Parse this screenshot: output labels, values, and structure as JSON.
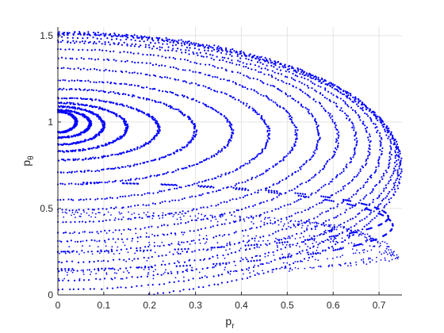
{
  "chart_data": {
    "type": "scatter",
    "title": "",
    "xlabel": "p",
    "xlabel_sub": "r",
    "ylabel": "p",
    "ylabel_sub": "θ",
    "xlim": [
      0,
      0.75
    ],
    "ylim": [
      0,
      1.55
    ],
    "x_ticks": [
      0,
      0.1,
      0.2,
      0.3,
      0.4,
      0.5,
      0.6,
      0.7
    ],
    "x_tick_labels": [
      "0",
      "0.1",
      "0.2",
      "0.3",
      "0.4",
      "0.5",
      "0.6",
      "0.7"
    ],
    "y_ticks": [
      0,
      0.5,
      1,
      1.5
    ],
    "y_tick_labels": [
      "0",
      "0.5",
      "1",
      "1.5"
    ],
    "grid": true,
    "legend": "none",
    "marker_color": "#0000ff",
    "series": [
      {
        "orbits": [
          {
            "cx": 0,
            "cy": 1.0,
            "a": 0.04,
            "b": 0.06
          },
          {
            "cx": 0,
            "cy": 0.99,
            "a": 0.07,
            "b": 0.08
          },
          {
            "cx": 0,
            "cy": 0.98,
            "a": 0.1,
            "b": 0.11
          },
          {
            "cx": 0,
            "cy": 0.97,
            "a": 0.15,
            "b": 0.14
          },
          {
            "cx": 0,
            "cy": 0.96,
            "a": 0.22,
            "b": 0.18
          },
          {
            "cx": 0,
            "cy": 0.95,
            "a": 0.3,
            "b": 0.24
          },
          {
            "cx": 0,
            "cy": 0.94,
            "a": 0.38,
            "b": 0.3
          },
          {
            "cx": 0,
            "cy": 0.93,
            "a": 0.46,
            "b": 0.38
          },
          {
            "cx": 0,
            "cy": 0.93,
            "a": 0.52,
            "b": 0.44
          },
          {
            "cx": 0,
            "cy": 0.92,
            "a": 0.57,
            "b": 0.5
          },
          {
            "cx": 0,
            "cy": 0.91,
            "a": 0.61,
            "b": 0.55
          },
          {
            "cx": 0,
            "cy": 0.89,
            "a": 0.65,
            "b": 0.58
          },
          {
            "cx": 0,
            "cy": 0.87,
            "a": 0.68,
            "b": 0.62
          },
          {
            "cx": 0,
            "cy": 0.85,
            "a": 0.705,
            "b": 0.66
          },
          {
            "cx": 0,
            "cy": 0.83,
            "a": 0.725,
            "b": 0.69
          },
          {
            "cx": 0,
            "cy": 0.8,
            "a": 0.738,
            "b": 0.715
          },
          {
            "cx": 0,
            "cy": 0.77,
            "a": 0.745,
            "b": 0.74
          },
          {
            "cx": 0,
            "cy": 0.74,
            "a": 0.748,
            "b": 0.765
          }
        ],
        "dashed_orbits": [
          {
            "cx": 0,
            "cy": 0.45,
            "a": 0.72,
            "b": 0.2
          },
          {
            "cx": 0,
            "cy": 0.4,
            "a": 0.73,
            "b": 0.25
          }
        ],
        "inner_lower_orbits": [
          {
            "cx": 0,
            "cy": 0.38,
            "a": 0.6,
            "b": 0.1
          },
          {
            "cx": 0,
            "cy": 0.36,
            "a": 0.64,
            "b": 0.12
          },
          {
            "cx": 0,
            "cy": 0.33,
            "a": 0.68,
            "b": 0.14
          },
          {
            "cx": 0,
            "cy": 0.3,
            "a": 0.7,
            "b": 0.16
          },
          {
            "cx": 0,
            "cy": 0.27,
            "a": 0.72,
            "b": 0.18
          },
          {
            "cx": 0,
            "cy": 0.24,
            "a": 0.73,
            "b": 0.12
          },
          {
            "cx": 0,
            "cy": 0.22,
            "a": 0.74,
            "b": 0.09
          }
        ]
      }
    ]
  }
}
